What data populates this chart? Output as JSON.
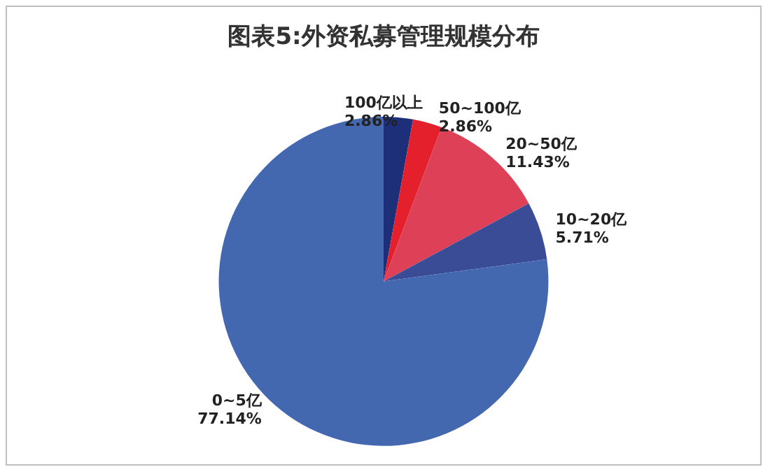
{
  "chart_data": {
    "type": "pie",
    "title": "图表5:外资私募管理规模分布",
    "categories": [
      "100亿以上",
      "50~100亿",
      "20~50亿",
      "10~20亿",
      "0~5亿"
    ],
    "values": [
      2.86,
      2.86,
      11.43,
      5.71,
      77.14
    ],
    "value_labels": [
      "2.86%",
      "2.86%",
      "11.43%",
      "5.71%",
      "77.14%"
    ],
    "colors": [
      "#1c2f78",
      "#e3202b",
      "#dd4057",
      "#3b4c96",
      "#4468b0"
    ],
    "legend": false
  }
}
